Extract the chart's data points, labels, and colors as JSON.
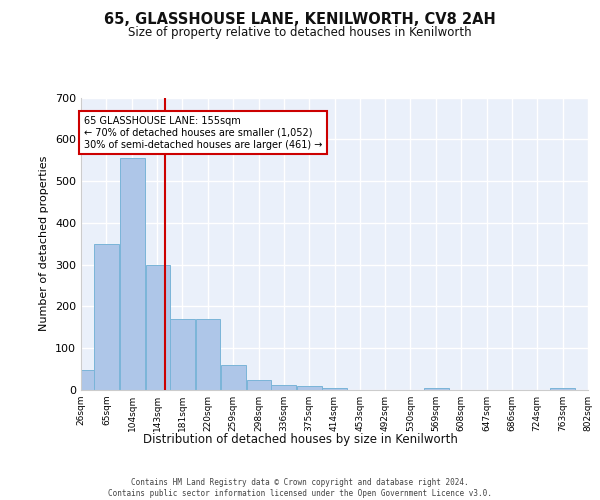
{
  "title_line1": "65, GLASSHOUSE LANE, KENILWORTH, CV8 2AH",
  "title_line2": "Size of property relative to detached houses in Kenilworth",
  "xlabel": "Distribution of detached houses by size in Kenilworth",
  "ylabel": "Number of detached properties",
  "footer_line1": "Contains HM Land Registry data © Crown copyright and database right 2024.",
  "footer_line2": "Contains public sector information licensed under the Open Government Licence v3.0.",
  "bin_edges": [
    26,
    65,
    104,
    143,
    181,
    220,
    259,
    298,
    336,
    375,
    414,
    453,
    492,
    530,
    569,
    608,
    647,
    686,
    724,
    763,
    802
  ],
  "bar_heights": [
    48,
    350,
    555,
    300,
    170,
    170,
    60,
    25,
    11,
    9,
    5,
    0,
    0,
    0,
    5,
    0,
    0,
    0,
    0,
    5
  ],
  "bar_color": "#aec6e8",
  "bar_edge_color": "#7ab4d8",
  "background_color": "#eaf0fa",
  "grid_color": "#ffffff",
  "vline_x": 155,
  "vline_color": "#cc0000",
  "annotation_text": "65 GLASSHOUSE LANE: 155sqm\n← 70% of detached houses are smaller (1,052)\n30% of semi-detached houses are larger (461) →",
  "annotation_box_color": "#ffffff",
  "annotation_box_edge": "#cc0000",
  "ylim": [
    0,
    700
  ],
  "yticks": [
    0,
    100,
    200,
    300,
    400,
    500,
    600,
    700
  ]
}
